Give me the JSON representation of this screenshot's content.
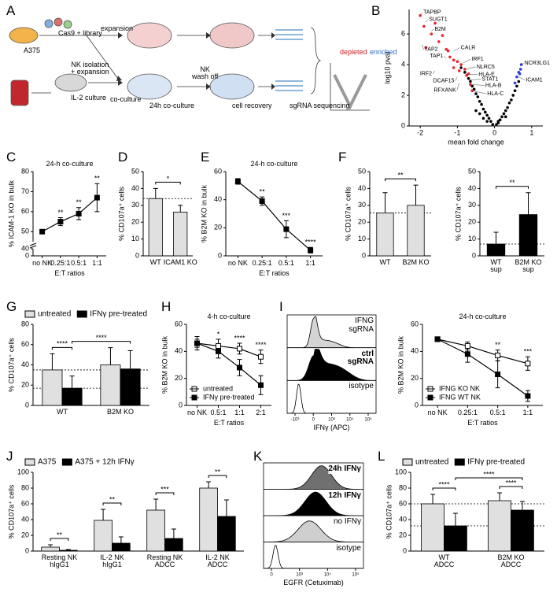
{
  "panel_letters": [
    "A",
    "B",
    "C",
    "D",
    "E",
    "F",
    "G",
    "H",
    "I",
    "J",
    "K",
    "L"
  ],
  "schematic": {
    "cell_line": "A375",
    "library": "Cas9 + library",
    "expansion": "expansion",
    "nk_isolation": "NK isolation\n+ expansion",
    "il2": "IL-2 culture",
    "coculture": "co-culture",
    "nk_wash": "NK\nwash off",
    "coculture_24h": "24h co-culture",
    "recovery": "cell recovery",
    "sequencing": "sgRNA sequencing",
    "depleted": "depleted",
    "enriched": "enriched"
  },
  "chart_data": [
    {
      "type": "scatter",
      "xlabel": "mean fold change",
      "ylabel": "log10 pval",
      "xlim": [
        -2.3,
        1.3
      ],
      "xticks": [
        -2,
        -1,
        0,
        1
      ],
      "ylim": [
        0,
        7.6
      ],
      "yticks": [
        0,
        2,
        4,
        6
      ],
      "series": [
        {
          "color": "#000000",
          "x": [
            -0.05,
            0.05,
            -0.1,
            0.1,
            -0.15,
            0.15,
            -0.2,
            0.2,
            -0.25,
            0.25,
            -0.3,
            0.3,
            -0.35,
            0.35,
            -0.4,
            0.4,
            -0.45,
            0.45,
            -0.5,
            0.5,
            -0.55,
            0.55,
            -0.6,
            -0.65,
            -0.7,
            -0.75,
            -0.8,
            -0.9,
            -0.5,
            -0.3,
            0.6,
            0.65,
            -0.2,
            0.1,
            -0.4,
            0.3
          ],
          "y": [
            0.1,
            0.1,
            0.3,
            0.3,
            0.5,
            0.4,
            0.7,
            0.6,
            0.9,
            0.8,
            1.1,
            1.0,
            1.4,
            1.2,
            1.6,
            1.5,
            1.9,
            1.7,
            2.1,
            2.0,
            2.4,
            2.3,
            2.6,
            2.9,
            3.1,
            3.3,
            3.5,
            3.8,
            1.0,
            0.5,
            2.6,
            2.9,
            0.3,
            0.2,
            0.8,
            0.6
          ]
        },
        {
          "color": "#e8262b",
          "x": [
            -0.7,
            -0.8,
            -0.9,
            -1.0,
            -1.1,
            -1.2,
            -1.3,
            -1.5,
            -1.7,
            -1.9,
            -2.0,
            -1.6,
            -1.4,
            -1.85,
            -1.1,
            -1.25,
            -0.95,
            -0.75,
            -0.65,
            -0.6
          ],
          "y": [
            3.4,
            3.7,
            4.0,
            4.2,
            4.3,
            4.5,
            5.0,
            5.5,
            6.0,
            6.5,
            7.2,
            6.7,
            5.9,
            5.1,
            3.8,
            4.9,
            3.6,
            3.3,
            2.7,
            2.3
          ]
        },
        {
          "color": "#2f3fd6",
          "x": [
            0.55,
            0.6,
            0.65,
            0.7,
            0.72,
            0.68
          ],
          "y": [
            2.8,
            3.2,
            3.5,
            3.7,
            4.0,
            3.4
          ]
        }
      ],
      "annotations": [
        {
          "text": "TAPBP",
          "x": -2.0,
          "y": 7.2
        },
        {
          "text": "SUGT1",
          "x": -1.85,
          "y": 6.8
        },
        {
          "text": "B2M",
          "x": -1.7,
          "y": 6.2
        },
        {
          "text": "TAP2",
          "x": -1.95,
          "y": 5.3
        },
        {
          "text": "CALR",
          "x": -1.1,
          "y": 4.9
        },
        {
          "text": "TAP1",
          "x": -1.3,
          "y": 4.4
        },
        {
          "text": "IRF1",
          "x": -0.85,
          "y": 4.1
        },
        {
          "text": "NLRC5",
          "x": -0.8,
          "y": 3.7
        },
        {
          "text": "HLA-E",
          "x": -0.75,
          "y": 3.35
        },
        {
          "text": "IRF2",
          "x": -1.6,
          "y": 3.6
        },
        {
          "text": "STAT1",
          "x": -0.7,
          "y": 3.0
        },
        {
          "text": "DCAF15",
          "x": -1.0,
          "y": 3.2
        },
        {
          "text": "HLA-B",
          "x": -0.65,
          "y": 2.7
        },
        {
          "text": "RFXANK",
          "x": -0.95,
          "y": 2.8
        },
        {
          "text": "HLA-C",
          "x": -0.6,
          "y": 2.3
        },
        {
          "text": "NCR3LG1",
          "x": 0.7,
          "y": 3.9
        },
        {
          "text": "ICAM1",
          "x": 0.65,
          "y": 3.2
        }
      ]
    },
    {
      "type": "line",
      "title": "24-h co-culture",
      "ylabel": "% ICAM-1 KO in bulk",
      "xlabel": "E:T  ratios",
      "categories": [
        "no NK",
        "0.25:1",
        "0.5:1",
        "1:1"
      ],
      "ylim": [
        45,
        80
      ],
      "yticks": [
        50,
        60,
        70,
        80
      ],
      "lower_ylim": [
        0,
        40
      ],
      "lower_yticks": [
        0,
        40
      ],
      "series": [
        {
          "color": "#000000",
          "marker": "filled",
          "values": [
            50,
            55,
            59,
            67
          ],
          "errors": [
            1,
            2,
            3,
            7
          ]
        }
      ],
      "significance": [
        null,
        "**",
        "**",
        "**"
      ]
    },
    {
      "type": "bar",
      "ylabel": "% CD107a⁺ cells",
      "categories": [
        "WT",
        "ICAM1 KO"
      ],
      "ylim": [
        0,
        50
      ],
      "yticks": [
        0,
        10,
        20,
        30,
        40,
        50
      ],
      "series": [
        {
          "color": "#e0e0e0",
          "values": [
            34,
            26
          ],
          "errors": [
            6,
            4
          ]
        }
      ],
      "reference_lines": [
        34
      ],
      "brackets": [
        {
          "from": [
            0,
            0
          ],
          "to": [
            1,
            0
          ],
          "label": "*"
        }
      ]
    },
    {
      "type": "line",
      "title": "24-h co-culture",
      "ylabel": "% B2M KO in bulk",
      "xlabel": "E:T  ratios",
      "categories": [
        "no NK",
        "0.25:1",
        "0.5:1",
        "1:1"
      ],
      "ylim": [
        0,
        60
      ],
      "yticks": [
        0,
        20,
        40,
        60
      ],
      "series": [
        {
          "color": "#000000",
          "marker": "filled",
          "values": [
            53,
            39,
            19,
            4
          ],
          "errors": [
            2,
            3,
            6,
            2
          ]
        }
      ],
      "significance": [
        null,
        "**",
        "***",
        "****"
      ]
    },
    {
      "type": "bar",
      "ylabel": "% CD107a⁺ cells",
      "categories": [
        "WT",
        "B2M KO"
      ],
      "ylim": [
        0,
        50
      ],
      "yticks": [
        0,
        10,
        20,
        30,
        40,
        50
      ],
      "series": [
        {
          "color": "#e0e0e0",
          "values": [
            25.5,
            30
          ],
          "errors": [
            12,
            12
          ]
        }
      ],
      "reference_lines": [
        25.5
      ],
      "brackets": [
        {
          "from": [
            0,
            0
          ],
          "to": [
            1,
            0
          ],
          "label": "**"
        }
      ]
    },
    {
      "type": "bar",
      "ylabel": "% CD107a⁺ cells",
      "categories": [
        "WT\nsup",
        "B2M KO\nsup"
      ],
      "ylim": [
        0,
        50
      ],
      "yticks": [
        0,
        10,
        20,
        30,
        40,
        50
      ],
      "series": [
        {
          "color": "#000000",
          "values": [
            7,
            24.5
          ],
          "errors": [
            7,
            13
          ]
        }
      ],
      "reference_lines": [
        7
      ],
      "brackets": [
        {
          "from": [
            0,
            0
          ],
          "to": [
            1,
            0
          ],
          "label": "**"
        }
      ]
    },
    {
      "type": "bar",
      "ylabel": "% CD107a⁺ cells",
      "categories": [
        "WT",
        "B2M KO"
      ],
      "ylim": [
        0,
        80
      ],
      "yticks": [
        0,
        20,
        40,
        60,
        80
      ],
      "legend": "top",
      "series": [
        {
          "name": "untreated",
          "color": "#e0e0e0",
          "values": [
            35,
            40
          ],
          "errors": [
            16,
            17
          ]
        },
        {
          "name": "IFNγ pre-treated",
          "color": "#000000",
          "values": [
            17,
            36
          ],
          "errors": [
            12,
            18
          ]
        }
      ],
      "reference_lines": [
        35,
        17
      ],
      "brackets": [
        {
          "from": [
            0,
            0
          ],
          "to": [
            0,
            1
          ],
          "label": "****"
        },
        {
          "from": [
            0,
            1
          ],
          "to": [
            1,
            1
          ],
          "label": "****"
        }
      ]
    },
    {
      "type": "line",
      "title": "4-h co-culture",
      "ylabel": "% B2M KO in bulk",
      "xlabel": "E:T  ratios",
      "categories": [
        "no NK",
        "0.5:1",
        "1:1",
        "2:1"
      ],
      "ylim": [
        0,
        60
      ],
      "yticks": [
        0,
        20,
        40,
        60
      ],
      "legend": "lower left",
      "series": [
        {
          "name": "untreated",
          "color": "#000000",
          "marker": "open",
          "values": [
            46,
            44,
            42,
            36
          ],
          "errors": [
            3,
            5,
            4,
            5
          ]
        },
        {
          "name": "IFNγ pre-treated",
          "color": "#000000",
          "marker": "filled",
          "values": [
            46,
            40,
            28,
            15
          ],
          "errors": [
            5,
            5,
            6,
            7
          ]
        }
      ],
      "significance": [
        null,
        "*",
        "****",
        "****"
      ]
    },
    {
      "type": "flow",
      "xlabel": "IFNγ (APC)",
      "xtick_labels": [
        "-10³",
        "0",
        "10³",
        "10⁴",
        "10⁵"
      ],
      "rows": [
        {
          "label": "IFNG\nsgRNA",
          "color": "#d4d4d4"
        },
        {
          "label": "ctrl\nsgRNA",
          "color": "#000000",
          "bold": true
        },
        {
          "label": "isotype",
          "color": "#ffffff"
        }
      ]
    },
    {
      "type": "line",
      "title": "24-h co-culture",
      "ylabel": "% B2M KO in bulk",
      "xlabel": "E:T  ratios",
      "categories": [
        "no NK",
        "0.25:1",
        "0.5:1",
        "1:1"
      ],
      "ylim": [
        0,
        60
      ],
      "yticks": [
        0,
        20,
        40,
        60
      ],
      "legend": "lower left",
      "series": [
        {
          "name": "IFNG KO NK",
          "color": "#000000",
          "marker": "open",
          "values": [
            49,
            44,
            37,
            31
          ],
          "errors": [
            1,
            3,
            4,
            5
          ]
        },
        {
          "name": "IFNG WT NK",
          "color": "#000000",
          "marker": "filled",
          "values": [
            49,
            38,
            23,
            7
          ],
          "errors": [
            1,
            6,
            10,
            4
          ]
        }
      ],
      "significance": [
        null,
        null,
        "**",
        "***"
      ]
    },
    {
      "type": "bar",
      "ylabel": "% CD107a⁺ cells",
      "categories": [
        "Resting NK\nhIgG1",
        "IL-2 NK\nhIgG1",
        "Resting NK\nADCC",
        "IL-2 NK\nADCC"
      ],
      "ylim": [
        0,
        100
      ],
      "yticks": [
        0,
        20,
        40,
        60,
        80,
        100
      ],
      "legend": "top",
      "series": [
        {
          "name": "A375",
          "color": "#e0e0e0",
          "values": [
            5,
            39,
            52,
            80
          ],
          "errors": [
            3,
            14,
            14,
            8
          ]
        },
        {
          "name": "A375 + 12h IFNγ",
          "color": "#000000",
          "values": [
            1,
            10,
            16,
            44
          ],
          "errors": [
            1,
            8,
            12,
            21
          ]
        }
      ],
      "brackets": [
        {
          "from": [
            0,
            0
          ],
          "to": [
            0,
            1
          ],
          "label": "**"
        },
        {
          "from": [
            1,
            0
          ],
          "to": [
            1,
            1
          ],
          "label": "**"
        },
        {
          "from": [
            2,
            0
          ],
          "to": [
            2,
            1
          ],
          "label": "***"
        },
        {
          "from": [
            3,
            0
          ],
          "to": [
            3,
            1
          ],
          "label": "**"
        }
      ]
    },
    {
      "type": "flow",
      "xlabel": "EGFR (Cetuximab)",
      "xtick_labels": [
        "0",
        "10³",
        "10⁴",
        "10⁵"
      ],
      "rows": [
        {
          "label": "24h IFNγ",
          "color": "#707070",
          "bold": true
        },
        {
          "label": "12h IFNγ",
          "color": "#000000",
          "bold": true
        },
        {
          "label": "no IFNγ",
          "color": "#cfcfcf"
        },
        {
          "label": "isotype",
          "color": "#ffffff"
        }
      ]
    },
    {
      "type": "bar",
      "ylabel": "% CD107a⁺ cells",
      "categories": [
        "WT\nADCC",
        "B2M KO\nADCC"
      ],
      "ylim": [
        0,
        100
      ],
      "yticks": [
        0,
        20,
        40,
        60,
        80,
        100
      ],
      "legend": "top",
      "series": [
        {
          "name": "untreated",
          "color": "#e0e0e0",
          "values": [
            60,
            64
          ],
          "errors": [
            12,
            10
          ]
        },
        {
          "name": "IFNγ pre-treated",
          "color": "#000000",
          "values": [
            32,
            52
          ],
          "errors": [
            16,
            11
          ]
        }
      ],
      "reference_lines": [
        60,
        32
      ],
      "brackets": [
        {
          "from": [
            0,
            0
          ],
          "to": [
            0,
            1
          ],
          "label": "****"
        },
        {
          "from": [
            1,
            0
          ],
          "to": [
            1,
            1
          ],
          "label": "****"
        },
        {
          "from": [
            0,
            1
          ],
          "to": [
            1,
            1
          ],
          "label": "****"
        }
      ]
    }
  ]
}
